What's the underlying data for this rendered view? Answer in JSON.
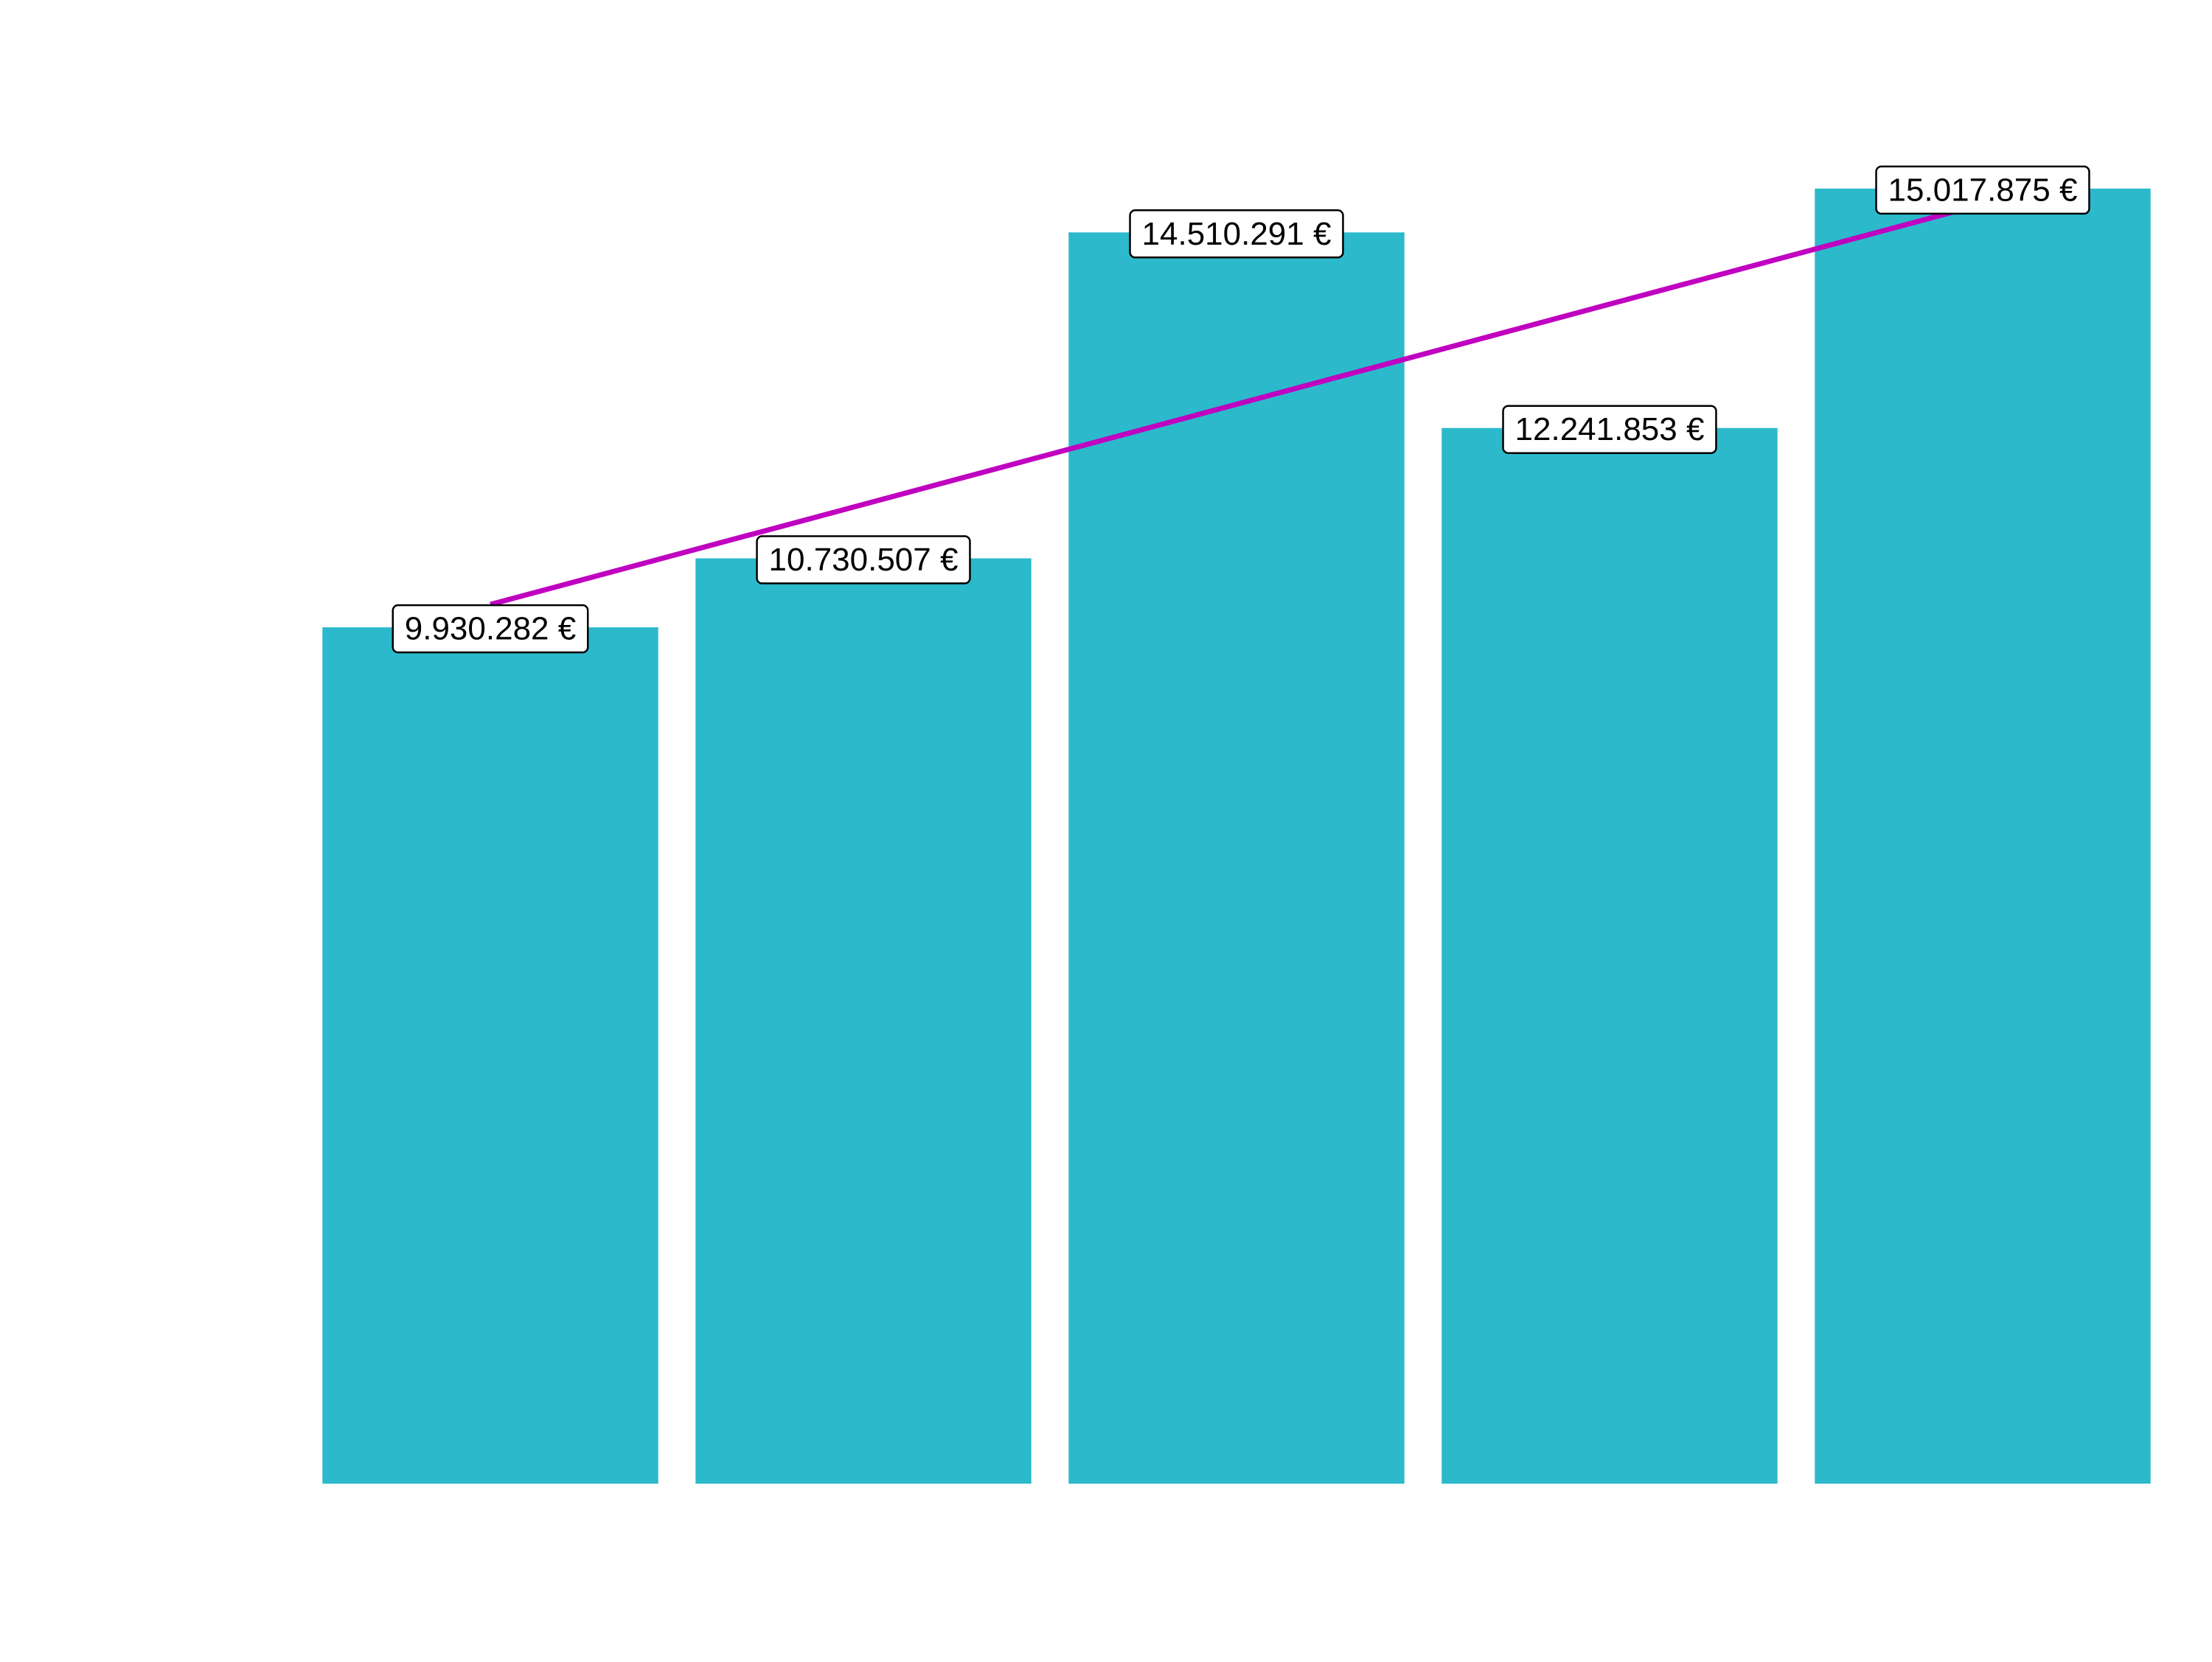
{
  "chart_data": {
    "type": "bar",
    "title": "",
    "xlabel": "",
    "ylabel": "",
    "categories": [
      "",
      "",
      "",
      "",
      ""
    ],
    "values": [
      9930282,
      10730507,
      14510291,
      12241853,
      15017875
    ],
    "value_labels": [
      "9.930.282 €",
      "10.730.507 €",
      "14.510.291 €",
      "12.241.853 €",
      "15.017.875 €"
    ],
    "ylim": [
      0,
      16000000
    ],
    "grid": false,
    "legend": "none",
    "trend_line": {
      "type": "linear",
      "start_value": 9930282,
      "end_value": 15017875,
      "color": "#C000C0"
    },
    "colors": {
      "bar": "#2BB9CB",
      "trend": "#C000C0",
      "label_background": "#FFFFFF",
      "label_border": "#000000",
      "label_text": "#000000"
    }
  }
}
